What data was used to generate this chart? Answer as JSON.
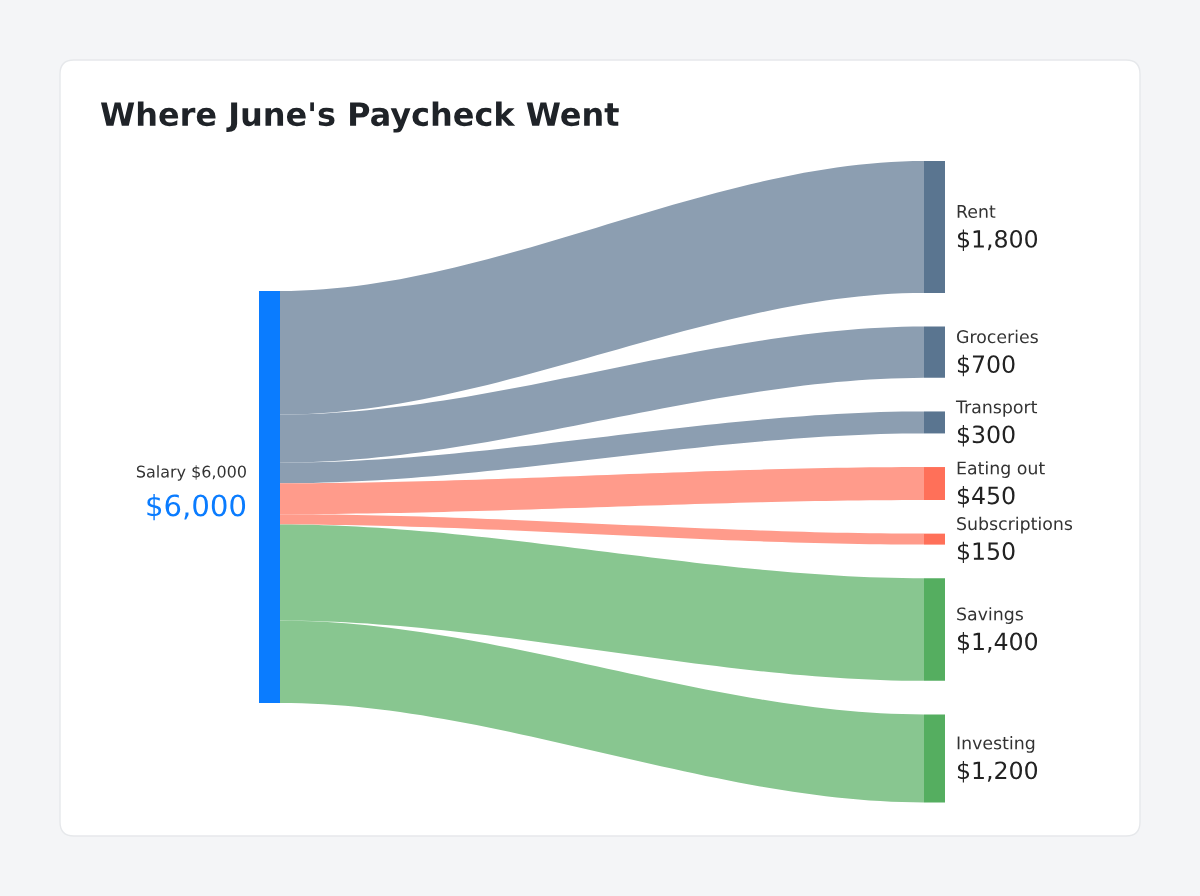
{
  "chart_data": {
    "type": "other",
    "title": "Where June's Paycheck Went",
    "categories": [
      "Salary $6,000",
      "Rent",
      "Groceries",
      "Transport",
      "Eating out",
      "Subscriptions",
      "Savings",
      "Investing"
    ],
    "values": [
      6000,
      1800,
      700,
      300,
      450,
      150,
      1400,
      1200
    ],
    "value_labels": [
      "$6,000",
      "$1,800",
      "$700",
      "$300",
      "$450",
      "$150",
      "$1,400",
      "$1,200"
    ],
    "colors": [
      "#0a7cff",
      "#5a7590",
      "#5a7590",
      "#5a7590",
      "#ff7059",
      "#ff7059",
      "#55ae60",
      "#55ae60"
    ]
  }
}
